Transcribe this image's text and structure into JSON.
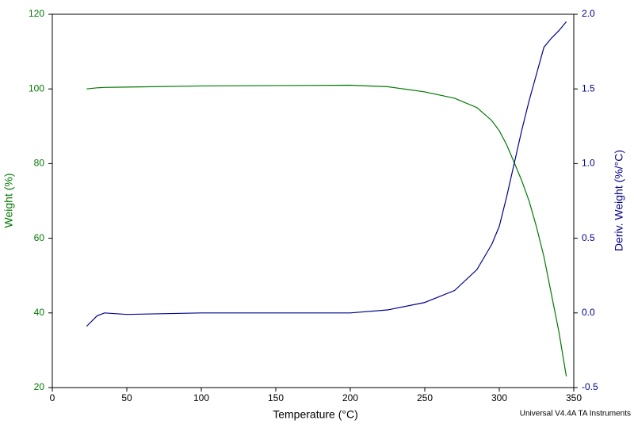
{
  "chart_data": {
    "type": "line",
    "xlabel": "Temperature (°C)",
    "ylabel": "Weight (%)",
    "y2label": "Deriv. Weight (%/°C)",
    "footer": "Universal V4.4A TA Instruments",
    "x": [
      23,
      30,
      35,
      50,
      100,
      150,
      200,
      225,
      250,
      270,
      285,
      295,
      300,
      305,
      310,
      315,
      320,
      325,
      330,
      335,
      340,
      345
    ],
    "series": [
      {
        "name": "Weight (%)",
        "color": "#007800",
        "values": [
          100,
          100.3,
          100.4,
          100.5,
          100.8,
          100.9,
          101,
          100.6,
          99.2,
          97.5,
          95,
          91.5,
          88.8,
          85,
          80.3,
          75.5,
          70,
          63,
          55,
          45,
          35,
          23
        ]
      },
      {
        "name": "Deriv. Weight (%/°C)",
        "color": "#000090",
        "axis": "y2",
        "values": [
          -0.09,
          -0.02,
          0.0,
          -0.01,
          0.0,
          0.0,
          0.0,
          0.02,
          0.07,
          0.15,
          0.29,
          0.46,
          0.58,
          0.78,
          1.0,
          1.22,
          1.42,
          1.6,
          1.78,
          1.84,
          1.89,
          1.95
        ]
      }
    ],
    "xlim": [
      0,
      350
    ],
    "xticks": [
      0,
      50,
      100,
      150,
      200,
      250,
      300,
      350
    ],
    "ylim": [
      20,
      120
    ],
    "yticks": [
      20,
      40,
      60,
      80,
      100,
      120
    ],
    "y2lim": [
      -0.5,
      2.0
    ],
    "y2ticks": [
      -0.5,
      {
        "value": 0,
        "label": "0.0"
      },
      0.5,
      {
        "value": 1,
        "label": "1.0"
      },
      1.5,
      {
        "value": 2,
        "label": "2.0"
      }
    ],
    "grid": false
  }
}
